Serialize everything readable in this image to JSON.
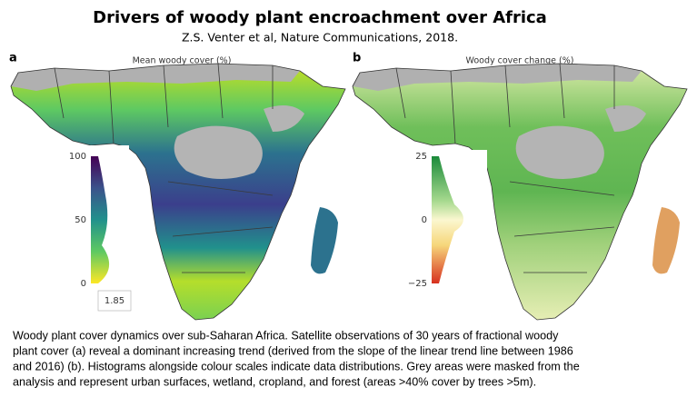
{
  "header": {
    "title": "Drivers of woody plant encroachment over Africa",
    "subtitle": "Z.S. Venter et al, Nature Communications, 2018."
  },
  "panels": [
    {
      "label": "a",
      "title": "Mean woody cover (%)",
      "scale_ticks": [
        "100",
        "50",
        "0"
      ],
      "histogram_label": "1.85"
    },
    {
      "label": "b",
      "title": "Woody cover change (%)",
      "scale_ticks": [
        "25",
        "0",
        "−25"
      ]
    }
  ],
  "caption": {
    "lines": [
      "Woody plant cover dynamics over sub-Saharan Africa. Satellite observations of 30 years of fractional woody",
      "plant cover (a) reveal a dominant increasing trend (derived from the slope of the linear trend line between 1986",
      "and 2016) (b). Histograms alongside colour scales indicate data distributions. Grey areas were masked from the",
      "analysis and represent urban surfaces, wetland, cropland, and forest (areas >40% cover by trees >5m)."
    ]
  }
}
